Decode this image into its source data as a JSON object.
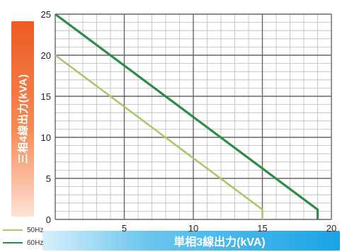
{
  "chart_data": {
    "type": "line",
    "ylabel": "三相4線出力(kVA)",
    "xlabel": "単相3線出力(kVA)",
    "xlim": [
      0,
      20
    ],
    "ylim": [
      0,
      25
    ],
    "x_ticks": [
      "5",
      "10",
      "15",
      "20"
    ],
    "y_ticks": [
      "0",
      "5",
      "10",
      "15",
      "20",
      "25"
    ],
    "grid": true,
    "legend_position": "bottom-left",
    "series": [
      {
        "name": "50Hz",
        "color": "#a8c96a",
        "points": [
          [
            0,
            20
          ],
          [
            15,
            1.2
          ],
          [
            15,
            0
          ]
        ]
      },
      {
        "name": "60Hz",
        "color": "#2e8b4a",
        "points": [
          [
            0,
            25
          ],
          [
            19,
            1.2
          ],
          [
            19,
            0
          ]
        ]
      }
    ]
  },
  "colors": {
    "grid_major": "#666666",
    "grid_minor": "#bbbbbb",
    "ylabel_accent": "#ee5a24",
    "xlabel_accent": "#1aa3e6"
  }
}
